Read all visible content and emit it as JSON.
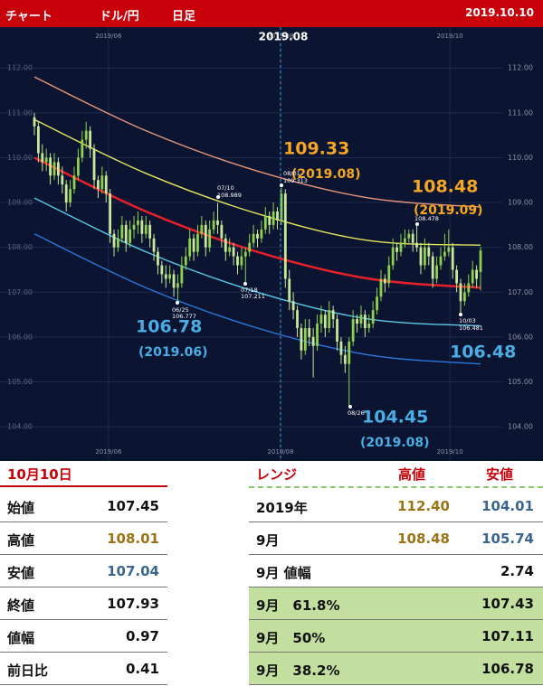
{
  "header": {
    "title": "チャート",
    "pair": "ドル/円",
    "timeframe": "日足",
    "date": "2019.10.10"
  },
  "chart_data": {
    "type": "candlestick",
    "ylim": [
      103.54,
      112.81
    ],
    "yticks": [
      {
        "value": 104,
        "label": "104.00"
      },
      {
        "value": 105,
        "label": "105.00"
      },
      {
        "value": 106,
        "label": "106.00"
      },
      {
        "value": 107,
        "label": "107.00"
      },
      {
        "value": 108,
        "label": "108.00"
      },
      {
        "value": 109,
        "label": "109.00"
      },
      {
        "value": 110,
        "label": "110.00"
      },
      {
        "value": 111,
        "label": "111.00"
      },
      {
        "value": 112,
        "label": "112.00"
      }
    ],
    "xlim": [
      -8.63,
      117.45
    ],
    "xticks": [
      {
        "value": 18.6,
        "label": "2019/06"
      },
      {
        "value": 61.8,
        "label": "2019/08"
      },
      {
        "value": 104.3,
        "label": "2019/10"
      }
    ],
    "grid": true,
    "up_color": "#8fd14f",
    "down_color": "#c9e89a",
    "candles": [
      [
        110.9,
        111.0,
        110.5,
        110.7
      ],
      [
        110.7,
        110.8,
        109.9,
        110.1
      ],
      [
        110.1,
        110.3,
        109.7,
        109.9
      ],
      [
        109.9,
        110.2,
        109.7,
        110.0
      ],
      [
        110.0,
        110.1,
        109.4,
        109.6
      ],
      [
        109.6,
        110.1,
        109.5,
        109.9
      ],
      [
        109.9,
        110.0,
        109.4,
        109.6
      ],
      [
        109.6,
        109.8,
        109.2,
        109.4
      ],
      [
        109.4,
        109.5,
        108.8,
        109.0
      ],
      [
        109.0,
        109.5,
        108.9,
        109.3
      ],
      [
        109.3,
        109.8,
        109.2,
        109.6
      ],
      [
        109.6,
        110.2,
        109.5,
        110.0
      ],
      [
        110.0,
        110.6,
        109.9,
        110.4
      ],
      [
        110.4,
        110.8,
        110.2,
        110.6
      ],
      [
        110.6,
        110.7,
        110.0,
        110.2
      ],
      [
        110.2,
        110.3,
        109.3,
        109.5
      ],
      [
        109.5,
        109.6,
        109.1,
        109.3
      ],
      [
        109.3,
        109.8,
        109.2,
        109.6
      ],
      [
        109.6,
        109.7,
        109.0,
        109.2
      ],
      [
        109.2,
        109.3,
        108.1,
        108.3
      ],
      [
        108.3,
        108.4,
        107.8,
        108.0
      ],
      [
        108.0,
        108.4,
        107.9,
        108.2
      ],
      [
        108.2,
        108.7,
        108.1,
        108.5
      ],
      [
        108.5,
        108.6,
        107.9,
        108.1
      ],
      [
        108.1,
        108.6,
        108.0,
        108.4
      ],
      [
        108.4,
        108.7,
        108.2,
        108.5
      ],
      [
        108.5,
        108.8,
        108.3,
        108.6
      ],
      [
        108.6,
        108.7,
        108.1,
        108.3
      ],
      [
        108.3,
        108.7,
        108.2,
        108.5
      ],
      [
        108.5,
        108.6,
        108.0,
        108.2
      ],
      [
        108.2,
        108.3,
        107.7,
        107.9
      ],
      [
        107.9,
        108.0,
        107.4,
        107.6
      ],
      [
        107.6,
        107.7,
        107.2,
        107.4
      ],
      [
        107.4,
        107.6,
        107.1,
        107.3
      ],
      [
        107.3,
        107.6,
        107.2,
        107.4
      ],
      [
        107.4,
        107.5,
        106.9,
        107.1
      ],
      [
        107.1,
        107.4,
        106.78,
        107.2
      ],
      [
        107.2,
        107.8,
        107.1,
        107.6
      ],
      [
        107.6,
        108.0,
        107.5,
        107.8
      ],
      [
        107.8,
        108.4,
        107.7,
        108.2
      ],
      [
        108.2,
        108.3,
        107.7,
        107.9
      ],
      [
        107.9,
        108.5,
        107.8,
        108.3
      ],
      [
        108.3,
        108.7,
        108.2,
        108.5
      ],
      [
        108.5,
        108.6,
        107.8,
        108.0
      ],
      [
        108.0,
        108.6,
        107.9,
        108.4
      ],
      [
        108.4,
        108.8,
        108.3,
        108.6
      ],
      [
        108.6,
        108.99,
        108.3,
        108.5
      ],
      [
        108.5,
        108.6,
        108.0,
        108.2
      ],
      [
        108.2,
        108.3,
        107.7,
        107.9
      ],
      [
        107.9,
        108.2,
        107.8,
        108.0
      ],
      [
        108.0,
        108.1,
        107.6,
        107.8
      ],
      [
        107.8,
        107.9,
        107.4,
        107.6
      ],
      [
        107.6,
        108.0,
        107.5,
        107.8
      ],
      [
        107.8,
        108.0,
        107.21,
        107.9
      ],
      [
        107.9,
        108.3,
        107.8,
        108.1
      ],
      [
        108.1,
        108.5,
        108.0,
        108.3
      ],
      [
        108.3,
        108.4,
        108.0,
        108.2
      ],
      [
        108.2,
        108.6,
        108.1,
        108.4
      ],
      [
        108.4,
        108.9,
        108.3,
        108.7
      ],
      [
        108.7,
        108.8,
        108.3,
        108.5
      ],
      [
        108.5,
        109.0,
        108.4,
        108.8
      ],
      [
        108.8,
        108.9,
        108.4,
        108.6
      ],
      [
        108.6,
        109.33,
        108.5,
        109.2
      ],
      [
        109.2,
        109.3,
        107.1,
        107.3
      ],
      [
        107.3,
        107.5,
        106.6,
        106.8
      ],
      [
        106.8,
        107.0,
        106.4,
        106.6
      ],
      [
        106.6,
        106.7,
        106.0,
        106.2
      ],
      [
        106.2,
        106.3,
        105.5,
        105.7
      ],
      [
        105.7,
        106.4,
        105.6,
        106.2
      ],
      [
        106.2,
        106.4,
        105.8,
        106.0
      ],
      [
        106.0,
        106.2,
        105.1,
        105.8
      ],
      [
        105.8,
        106.5,
        105.7,
        106.3
      ],
      [
        106.3,
        106.7,
        106.1,
        106.5
      ],
      [
        106.5,
        106.6,
        106.0,
        106.2
      ],
      [
        106.2,
        106.8,
        106.1,
        106.6
      ],
      [
        106.6,
        106.7,
        106.2,
        106.4
      ],
      [
        106.4,
        106.5,
        105.7,
        105.9
      ],
      [
        105.9,
        106.0,
        105.4,
        105.6
      ],
      [
        105.6,
        105.8,
        105.2,
        105.4
      ],
      [
        105.4,
        106.0,
        104.45,
        105.9
      ],
      [
        105.9,
        106.6,
        105.8,
        106.4
      ],
      [
        106.4,
        106.5,
        106.1,
        106.3
      ],
      [
        106.3,
        106.7,
        106.2,
        106.5
      ],
      [
        106.5,
        106.6,
        106.0,
        106.2
      ],
      [
        106.2,
        106.5,
        106.1,
        106.3
      ],
      [
        106.3,
        106.8,
        106.2,
        106.6
      ],
      [
        106.6,
        107.1,
        106.5,
        106.9
      ],
      [
        106.9,
        107.5,
        106.8,
        107.3
      ],
      [
        107.3,
        107.4,
        107.0,
        107.2
      ],
      [
        107.2,
        107.8,
        107.1,
        107.6
      ],
      [
        107.6,
        108.2,
        107.5,
        108.0
      ],
      [
        108.0,
        108.1,
        107.7,
        107.9
      ],
      [
        107.9,
        108.3,
        107.8,
        108.1
      ],
      [
        108.1,
        108.4,
        108.0,
        108.2
      ],
      [
        108.2,
        108.4,
        108.1,
        108.3
      ],
      [
        108.3,
        108.4,
        107.9,
        108.1
      ],
      [
        108.1,
        108.48,
        107.9,
        108.0
      ],
      [
        108.0,
        108.1,
        107.4,
        107.6
      ],
      [
        107.6,
        108.2,
        107.5,
        108.0
      ],
      [
        108.0,
        108.1,
        107.6,
        107.8
      ],
      [
        107.8,
        107.9,
        107.1,
        107.3
      ],
      [
        107.3,
        107.8,
        107.2,
        107.6
      ],
      [
        107.6,
        108.0,
        107.5,
        107.8
      ],
      [
        107.8,
        108.3,
        107.7,
        107.9
      ],
      [
        107.9,
        108.4,
        107.8,
        108.0
      ],
      [
        108.0,
        108.1,
        107.3,
        107.5
      ],
      [
        107.5,
        107.6,
        107.0,
        107.2
      ],
      [
        107.2,
        107.3,
        106.48,
        106.8
      ],
      [
        106.8,
        107.2,
        106.7,
        107.0
      ],
      [
        107.0,
        107.4,
        106.9,
        107.2
      ],
      [
        107.2,
        107.7,
        107.1,
        107.5
      ],
      [
        107.5,
        107.6,
        107.1,
        107.3
      ],
      [
        107.45,
        108.01,
        107.04,
        107.93
      ]
    ],
    "bands": [
      {
        "color": "#e8967a",
        "x": [
          0,
          28,
          56,
          84,
          112
        ],
        "values": [
          111.8,
          110.6,
          109.7,
          109.1,
          108.9
        ]
      },
      {
        "color": "#e6e65a",
        "x": [
          0,
          28,
          56,
          84,
          112
        ],
        "values": [
          110.85,
          109.65,
          108.75,
          108.15,
          108.05
        ]
      },
      {
        "color": "#e8202a",
        "x": [
          0,
          28,
          56,
          84,
          112
        ],
        "values": [
          110.0,
          108.8,
          107.9,
          107.3,
          107.1
        ]
      },
      {
        "color": "#5ac8e8",
        "x": [
          0,
          28,
          56,
          84,
          112
        ],
        "values": [
          109.1,
          107.9,
          107.0,
          106.4,
          106.25
        ]
      },
      {
        "color": "#2a78e0",
        "x": [
          0,
          28,
          56,
          84,
          112
        ],
        "values": [
          108.3,
          107.1,
          106.2,
          105.6,
          105.4
        ]
      }
    ],
    "cursor_label": "2019.08",
    "annotations": [
      "109.33",
      "(2019.08)",
      "108.48",
      "(2019.09)",
      "106.78",
      "(2019.06)",
      "104.45",
      "(2019.08)",
      "106.48"
    ],
    "point_labels": [
      "06/25",
      "106.777",
      "07/10",
      "108.989",
      "07/18",
      "107.211",
      "08/01",
      "109.313",
      "108.478",
      "08/26",
      "10/03",
      "106.481"
    ]
  },
  "left_table": {
    "title": "10月10日",
    "rows": [
      [
        "始値",
        "107.45"
      ],
      [
        "高値",
        "108.01"
      ],
      [
        "安値",
        "107.04"
      ],
      [
        "終値",
        "107.93"
      ],
      [
        "値幅",
        "0.97"
      ],
      [
        "前日比",
        "0.41"
      ]
    ]
  },
  "right_table": {
    "headers": [
      "レンジ",
      "高値",
      "安値"
    ],
    "rows": [
      [
        "2019年",
        "112.40",
        "104.01"
      ],
      [
        "9月",
        "108.48",
        "105.74"
      ],
      [
        "9月 値幅",
        "2.74"
      ],
      [
        "9月　61.8%",
        "107.43"
      ],
      [
        "9月　50%",
        "107.11"
      ],
      [
        "9月　38.2%",
        "106.78"
      ]
    ]
  }
}
